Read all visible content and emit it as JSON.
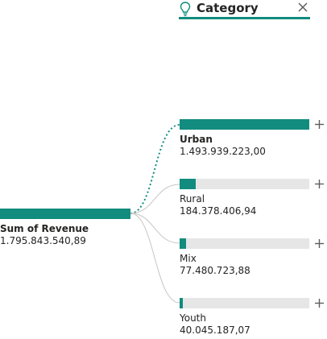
{
  "header": {
    "title": "Category",
    "icon": "lightbulb-icon",
    "close_icon": "close-icon"
  },
  "colors": {
    "accent": "#118c7e",
    "track": "#e6e6e6",
    "text": "#252423",
    "plus": "#605e5c"
  },
  "root": {
    "name": "Sum of Revenue",
    "value": "1.795.843.540,89"
  },
  "nodes": [
    {
      "name": "Urban",
      "value": "1.493.939.223,00",
      "fraction": 1.0,
      "selected": true
    },
    {
      "name": "Rural",
      "value": "184.378.406,94",
      "fraction": 0.123,
      "selected": false
    },
    {
      "name": "Mix",
      "value": "77.480.723,88",
      "fraction": 0.052,
      "selected": false
    },
    {
      "name": "Youth",
      "value": "40.045.187,07",
      "fraction": 0.027,
      "selected": false
    }
  ]
}
